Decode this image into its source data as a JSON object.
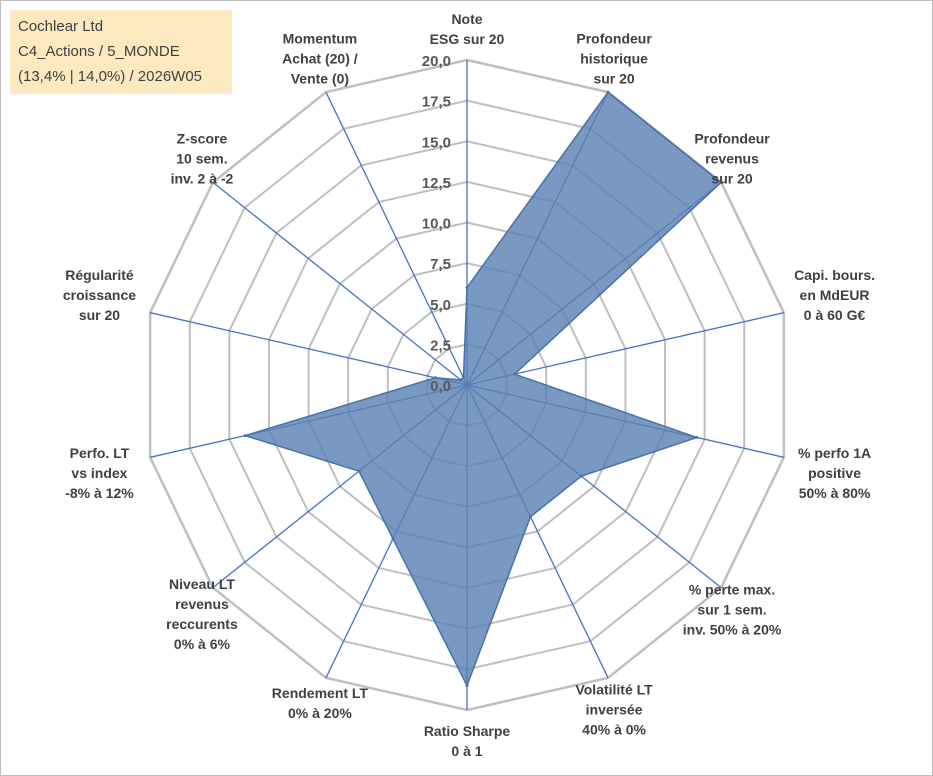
{
  "info_box": {
    "line1": "Cochlear Ltd",
    "line2": "C4_Actions / 5_MONDE",
    "line3": "(13,4% | 14,0%) / 2026W05"
  },
  "colors": {
    "fill": "#5b83b5",
    "stroke": "#4a70a8",
    "axis": "#4472c4",
    "grid": "#bfbfbf",
    "info_bg": "#fde9c0"
  },
  "chart_data": {
    "type": "radar",
    "title": "",
    "rlim": [
      0,
      20
    ],
    "grid": true,
    "ticks": [
      "0,0",
      "2,5",
      "5,0",
      "7,5",
      "10,0",
      "12,5",
      "15,0",
      "17,5",
      "20,0"
    ],
    "axes": [
      [
        "Note",
        "ESG sur 20"
      ],
      [
        "Profondeur",
        "historique",
        "sur 20"
      ],
      [
        "Profondeur",
        "revenus",
        "sur 20"
      ],
      [
        "Capi. bours.",
        "en MdEUR",
        "0 à 60 G€"
      ],
      [
        "% perfo 1A",
        "positive",
        "50% à 80%"
      ],
      [
        "% perte max.",
        "sur 1 sem.",
        "inv. 50% à 20%"
      ],
      [
        "Volatilité LT",
        "inversée",
        "40% à 0%"
      ],
      [
        "Ratio Sharpe",
        "0 à 1"
      ],
      [
        "Rendement LT",
        "0% à 20%"
      ],
      [
        "Niveau LT",
        "revenus",
        "reccurents",
        "0% à 6%"
      ],
      [
        "Perfo. LT",
        "vs index",
        "-8% à 12%"
      ],
      [
        "Régularité",
        "croissance",
        "sur 20"
      ],
      [
        "Z-score",
        "10 sem.",
        "inv. 2 à -2"
      ],
      [
        "Momentum",
        "Achat (20) /",
        "Vente (0)"
      ]
    ],
    "series": [
      {
        "name": "Cochlear Ltd",
        "values": [
          6.0,
          20.0,
          20.0,
          3.0,
          14.5,
          9.0,
          9.0,
          18.5,
          10.5,
          8.5,
          14.0,
          2.0,
          0.5,
          0.5
        ]
      }
    ]
  }
}
